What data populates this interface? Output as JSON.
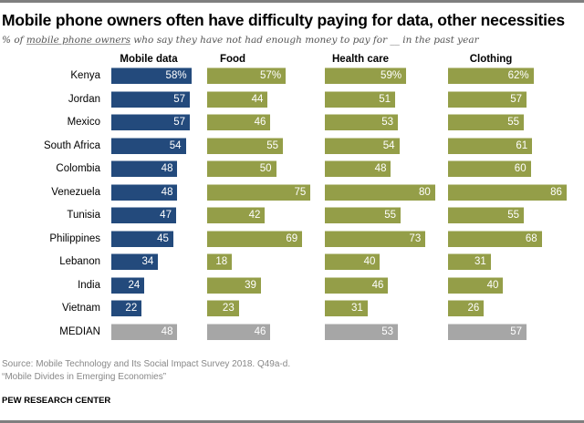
{
  "title": "Mobile phone owners often have difficulty paying for data, other necessities",
  "subtitle_prefix": "% of ",
  "subtitle_underlined": "mobile phone owners",
  "subtitle_suffix": " who say they have not had enough money to pay for __ in the past year",
  "source": "Source: Mobile Technology and Its Social Impact Survey 2018. Q49a-d.",
  "report": "“Mobile Divides in Emerging Economies”",
  "brand": "PEW RESEARCH CENTER",
  "colors": {
    "mobile_data": "#234a7c",
    "other": "#949e48",
    "median": "#a6a6a6"
  },
  "chart_data": {
    "type": "bar",
    "orientation": "horizontal",
    "categories": [
      "Kenya",
      "Jordan",
      "Mexico",
      "South Africa",
      "Colombia",
      "Venezuela",
      "Tunisia",
      "Philippines",
      "Lebanon",
      "India",
      "Vietnam",
      "MEDIAN"
    ],
    "series": [
      {
        "name": "Mobile data",
        "values": [
          58,
          57,
          57,
          54,
          48,
          48,
          47,
          45,
          34,
          24,
          22,
          48
        ]
      },
      {
        "name": "Food",
        "values": [
          57,
          44,
          46,
          55,
          50,
          75,
          42,
          69,
          18,
          39,
          23,
          46
        ]
      },
      {
        "name": "Health care",
        "values": [
          59,
          51,
          53,
          54,
          48,
          80,
          55,
          73,
          40,
          46,
          31,
          53
        ]
      },
      {
        "name": "Clothing",
        "values": [
          62,
          57,
          55,
          61,
          60,
          86,
          55,
          68,
          31,
          40,
          26,
          57
        ]
      }
    ],
    "first_row_suffix": "%",
    "xlim": [
      0,
      100
    ],
    "grid": false,
    "legend": "none"
  }
}
